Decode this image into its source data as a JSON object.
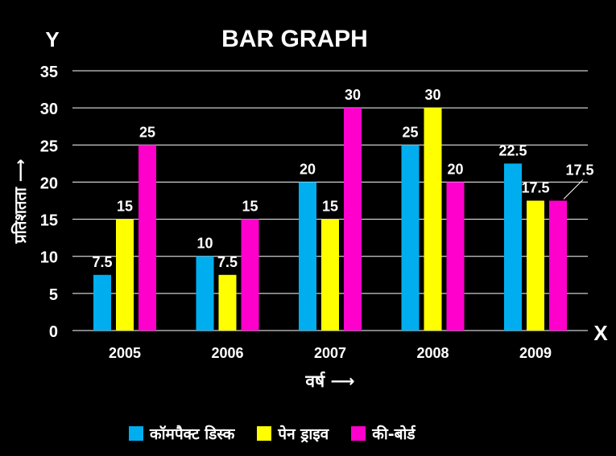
{
  "chart_data": {
    "type": "bar",
    "title": "BAR GRAPH",
    "xlabel": "वर्ष ⟶",
    "ylabel": "प्रतिशतता ⟶",
    "x_axis_letter": "X",
    "y_axis_letter": "Y",
    "categories": [
      "2005",
      "2006",
      "2007",
      "2008",
      "2009"
    ],
    "ylim": [
      0,
      35
    ],
    "yticks": [
      "0",
      "5",
      "10",
      "15",
      "20",
      "25",
      "30",
      "35"
    ],
    "grid": true,
    "legend_position": "bottom",
    "series": [
      {
        "name": "कॉमपैक्ट डिस्क",
        "color": "#00AEEF",
        "values": [
          7.5,
          10,
          20,
          25,
          22.5
        ],
        "labels": [
          "7.5",
          "10",
          "20",
          "25",
          "22.5"
        ]
      },
      {
        "name": "पेन ड्राइव",
        "color": "#FFFF00",
        "values": [
          15,
          7.5,
          15,
          30,
          17.5
        ],
        "labels": [
          "15",
          "7.5",
          "15",
          "30",
          "17.5"
        ]
      },
      {
        "name": "की-बोर्ड",
        "color": "#FF00CC",
        "values": [
          25,
          15,
          30,
          20,
          17.5
        ],
        "labels": [
          "25",
          "15",
          "30",
          "20",
          "17.5"
        ]
      }
    ]
  }
}
